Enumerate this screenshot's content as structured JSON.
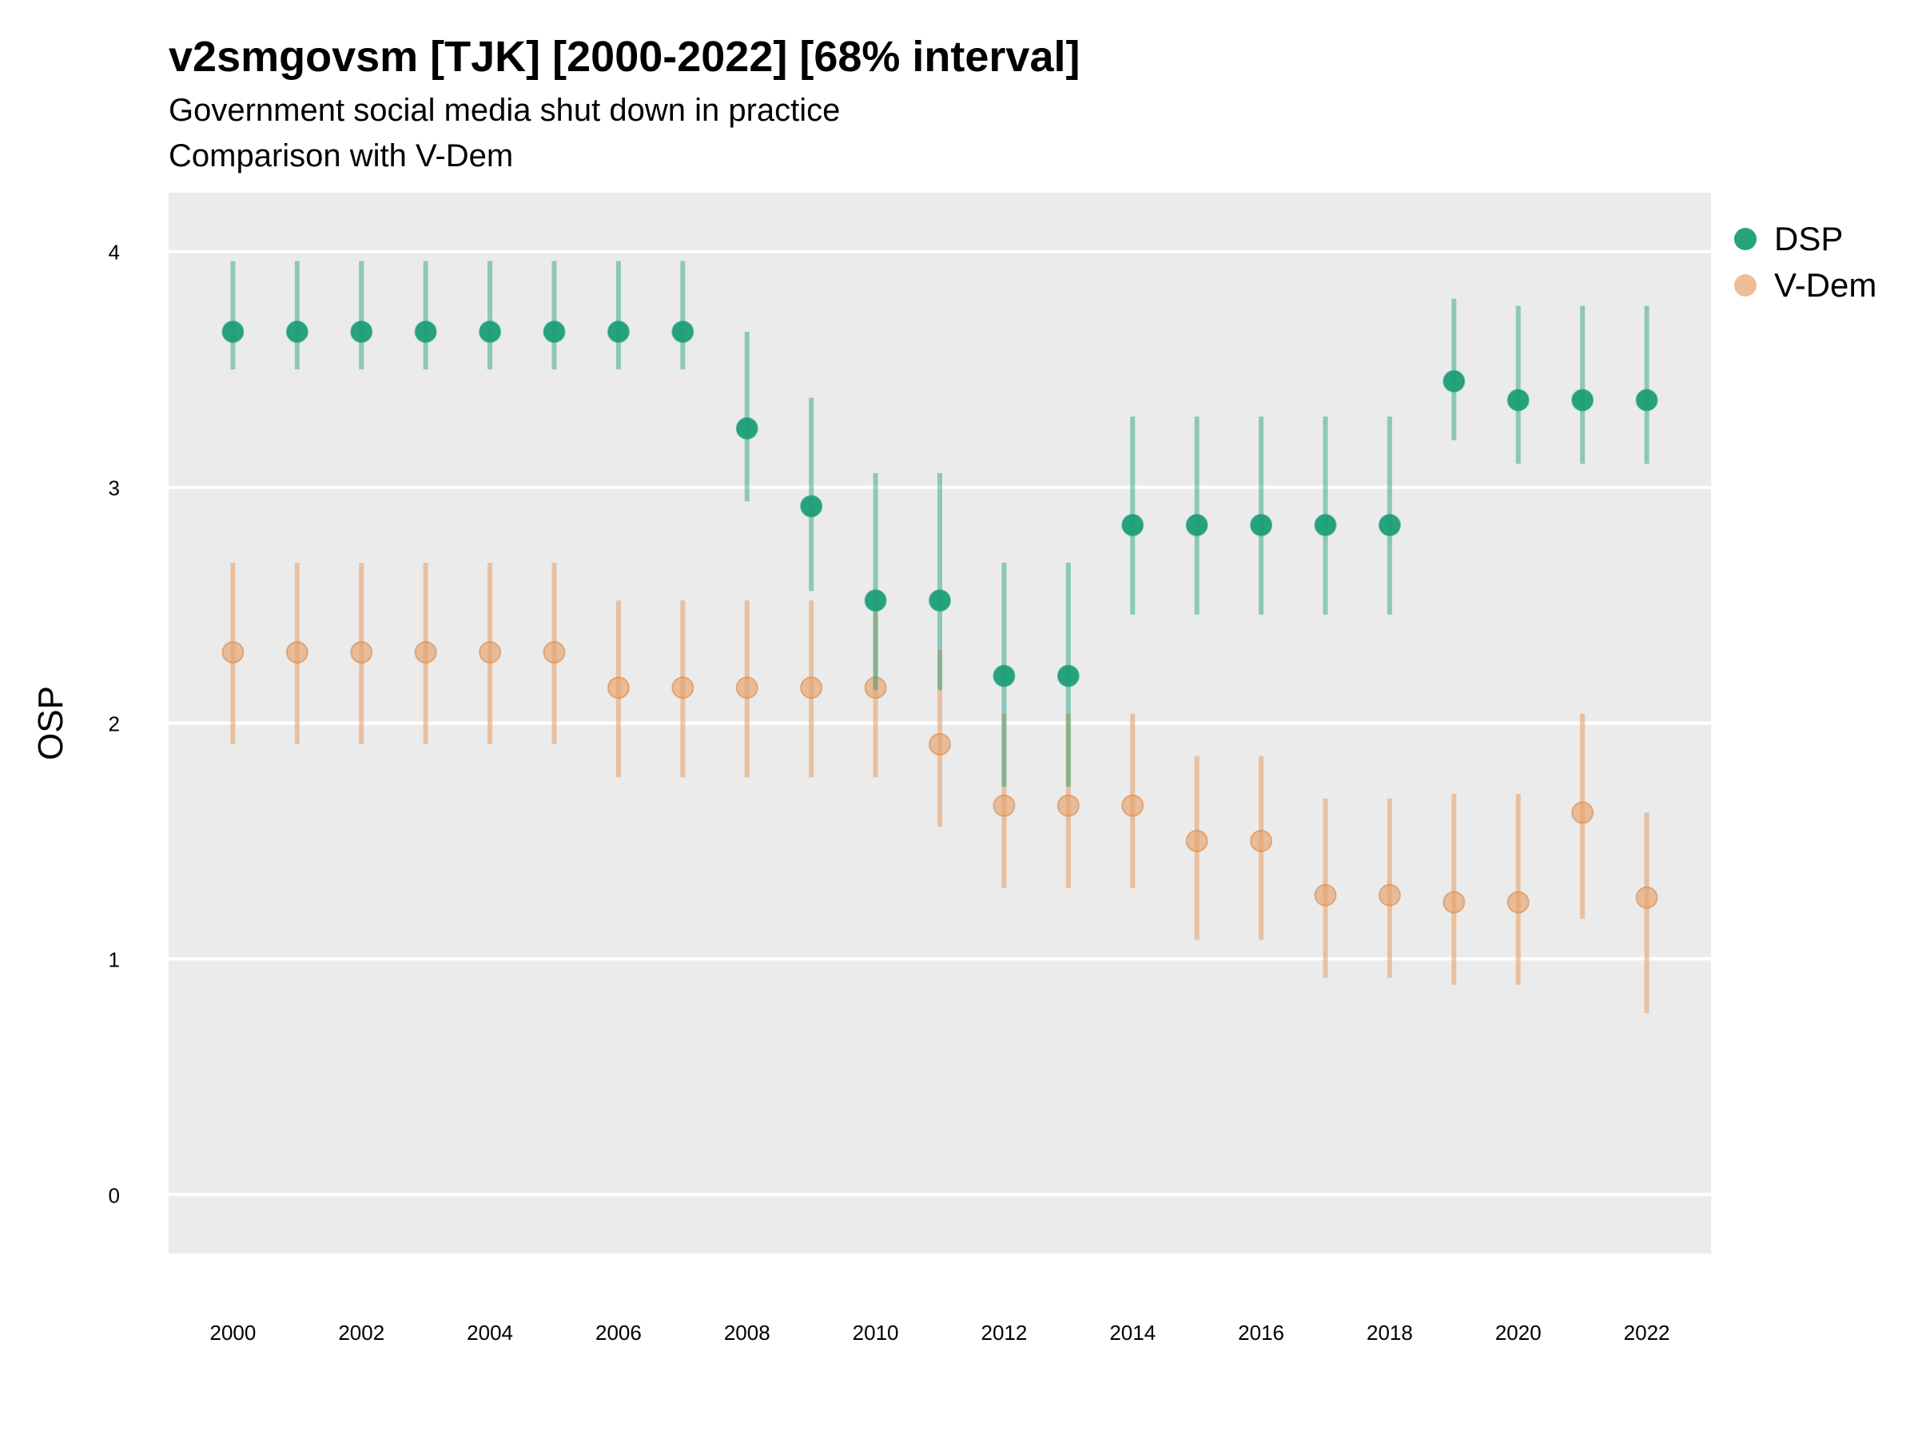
{
  "title": "v2smgovsm [TJK] [2000-2022] [68% interval]",
  "subtitle": "Government social media shut down in practice",
  "caption_line": "Comparison with V-Dem",
  "legend": {
    "items": [
      {
        "label": "DSP",
        "color": "#1b9e77"
      },
      {
        "label": "V-Dem",
        "color": "#e7a36c"
      }
    ]
  },
  "chart_data": {
    "type": "scatter",
    "title": "v2smgovsm [TJK] [2000-2022] [68% interval]",
    "subtitle": "Government social media shut down in practice",
    "xlabel": "",
    "ylabel": "OSP",
    "xlim": [
      1999,
      2023
    ],
    "ylim": [
      -0.25,
      4.25
    ],
    "x_ticks": [
      2000,
      2002,
      2004,
      2006,
      2008,
      2010,
      2012,
      2014,
      2016,
      2018,
      2020,
      2022
    ],
    "y_ticks": [
      0,
      1,
      2,
      3,
      4
    ],
    "grid": true,
    "legend_position": "right",
    "x": [
      2000,
      2001,
      2002,
      2003,
      2004,
      2005,
      2006,
      2007,
      2008,
      2009,
      2010,
      2011,
      2012,
      2013,
      2014,
      2015,
      2016,
      2017,
      2018,
      2019,
      2020,
      2021,
      2022
    ],
    "series": [
      {
        "name": "DSP",
        "color": "#1b9e77",
        "values": [
          3.66,
          3.66,
          3.66,
          3.66,
          3.66,
          3.66,
          3.66,
          3.66,
          3.25,
          2.92,
          2.52,
          2.52,
          2.2,
          2.2,
          2.84,
          2.84,
          2.84,
          2.84,
          2.84,
          3.45,
          3.37,
          3.37,
          3.37
        ],
        "lower": [
          3.5,
          3.5,
          3.5,
          3.5,
          3.5,
          3.5,
          3.5,
          3.5,
          2.94,
          2.56,
          2.14,
          2.14,
          1.73,
          1.73,
          2.46,
          2.46,
          2.46,
          2.46,
          2.46,
          3.2,
          3.1,
          3.1,
          3.1
        ],
        "upper": [
          3.96,
          3.96,
          3.96,
          3.96,
          3.96,
          3.96,
          3.96,
          3.96,
          3.66,
          3.38,
          3.06,
          3.06,
          2.68,
          2.68,
          3.3,
          3.3,
          3.3,
          3.3,
          3.3,
          3.8,
          3.77,
          3.77,
          3.77
        ]
      },
      {
        "name": "V-Dem",
        "color": "#e7a36c",
        "values": [
          2.3,
          2.3,
          2.3,
          2.3,
          2.3,
          2.3,
          2.15,
          2.15,
          2.15,
          2.15,
          2.15,
          1.91,
          1.65,
          1.65,
          1.65,
          1.5,
          1.5,
          1.27,
          1.27,
          1.24,
          1.24,
          1.62,
          1.26
        ],
        "lower": [
          1.91,
          1.91,
          1.91,
          1.91,
          1.91,
          1.91,
          1.77,
          1.77,
          1.77,
          1.77,
          1.77,
          1.56,
          1.3,
          1.3,
          1.3,
          1.08,
          1.08,
          0.92,
          0.92,
          0.89,
          0.89,
          1.17,
          0.77
        ],
        "upper": [
          2.68,
          2.68,
          2.68,
          2.68,
          2.68,
          2.68,
          2.52,
          2.52,
          2.52,
          2.52,
          2.52,
          2.31,
          2.04,
          2.04,
          2.04,
          1.86,
          1.86,
          1.68,
          1.68,
          1.7,
          1.7,
          2.04,
          1.62
        ]
      }
    ]
  }
}
